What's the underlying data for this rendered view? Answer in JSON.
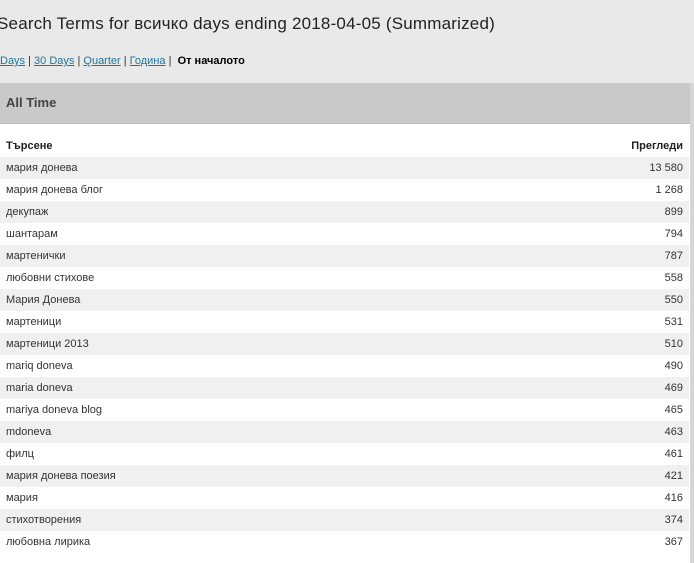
{
  "title": "Search Terms for всичко days ending 2018-04-05 (Summarized)",
  "nav": {
    "links": [
      "Days",
      "30 Days",
      "Quarter",
      "Година"
    ],
    "current": "От началото"
  },
  "panel": {
    "title": "All Time",
    "columns": [
      "Търсене",
      "Прегледи"
    ],
    "rows": [
      [
        "мария донева",
        "13 580"
      ],
      [
        "мария донева блог",
        "1 268"
      ],
      [
        "декупаж",
        "899"
      ],
      [
        "шантарам",
        "794"
      ],
      [
        "мартенички",
        "787"
      ],
      [
        "любовни стихове",
        "558"
      ],
      [
        "Мария Донева",
        "550"
      ],
      [
        "мартеници",
        "531"
      ],
      [
        "мартеници 2013",
        "510"
      ],
      [
        "mariq doneva",
        "490"
      ],
      [
        "maria doneva",
        "469"
      ],
      [
        "mariya doneva blog",
        "465"
      ],
      [
        "mdoneva",
        "463"
      ],
      [
        "филц",
        "461"
      ],
      [
        "мария донева поезия",
        "421"
      ],
      [
        "мария",
        "416"
      ],
      [
        "стихотворения",
        "374"
      ],
      [
        "любовна лирика",
        "367"
      ]
    ]
  }
}
